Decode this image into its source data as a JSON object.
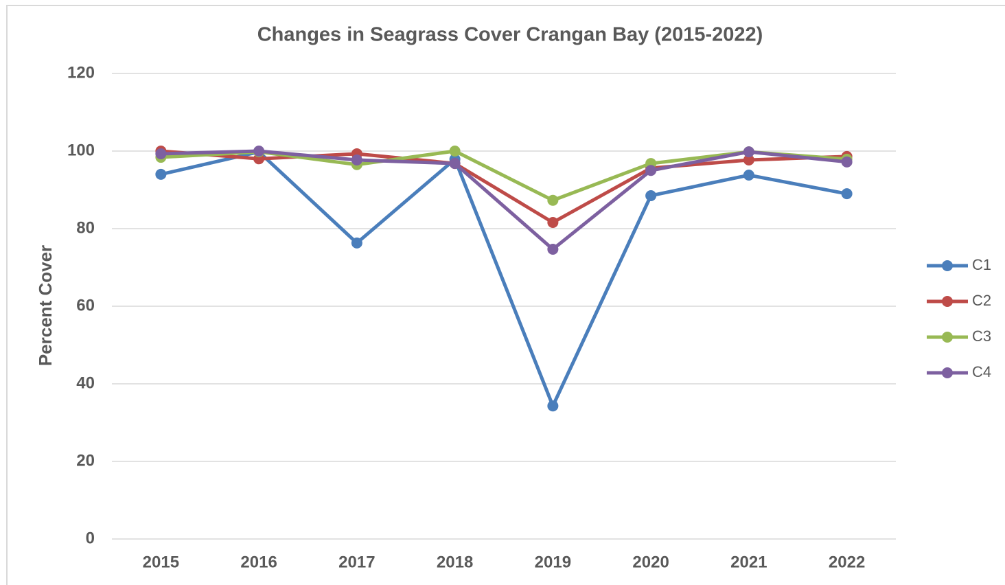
{
  "chart_data": {
    "type": "line",
    "title": "Changes in Seagrass Cover Crangan Bay (2015-2022)",
    "y_label": "Percent Cover",
    "categories": [
      "2015",
      "2016",
      "2017",
      "2018",
      "2019",
      "2020",
      "2021",
      "2022"
    ],
    "series": [
      {
        "name": "C1",
        "color": "#4a7ebb",
        "values": [
          94.0,
          99.8,
          76.3,
          97.9,
          34.3,
          88.5,
          93.8,
          89.0
        ]
      },
      {
        "name": "C2",
        "color": "#be4b48",
        "values": [
          100,
          98.0,
          99.3,
          96.8,
          81.6,
          95.6,
          97.7,
          98.6
        ]
      },
      {
        "name": "C3",
        "color": "#98b954",
        "values": [
          98.4,
          99.8,
          96.5,
          100,
          87.3,
          96.8,
          99.8,
          97.9
        ]
      },
      {
        "name": "C4",
        "color": "#7d60a0",
        "values": [
          99.3,
          100,
          97.7,
          96.8,
          74.7,
          95.0,
          99.8,
          97.2
        ]
      }
    ],
    "ylim": [
      0,
      120
    ],
    "yticks": [
      0,
      20,
      40,
      60,
      80,
      100,
      120
    ],
    "grid": true,
    "legend": "right"
  }
}
